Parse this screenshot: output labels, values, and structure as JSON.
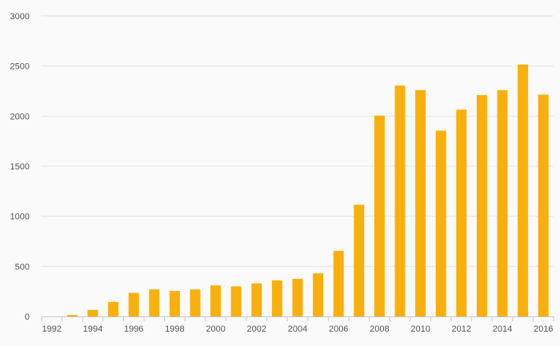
{
  "chart_data": {
    "type": "bar",
    "categories": [
      "1992",
      "1993",
      "1994",
      "1995",
      "1996",
      "1997",
      "1998",
      "1999",
      "2000",
      "2001",
      "2002",
      "2003",
      "2004",
      "2005",
      "2006",
      "2007",
      "2008",
      "2009",
      "2010",
      "2011",
      "2012",
      "2013",
      "2014",
      "2015",
      "2016"
    ],
    "x_tick_labels": [
      "1992",
      "1994",
      "1996",
      "1998",
      "2000",
      "2002",
      "2004",
      "2006",
      "2008",
      "2010",
      "2012",
      "2014",
      "2016"
    ],
    "series": [
      {
        "values": [
          0,
          15,
          65,
          145,
          235,
          270,
          255,
          270,
          310,
          300,
          330,
          360,
          375,
          430,
          655,
          1115,
          2005,
          2305,
          2260,
          1855,
          2065,
          2210,
          2260,
          2515,
          2215
        ]
      }
    ],
    "y_ticks": [
      0,
      500,
      1000,
      1500,
      2000,
      2500,
      3000
    ],
    "ylim": [
      0,
      3000
    ],
    "grid": true,
    "title": "",
    "xlabel": "",
    "ylabel": "",
    "colors": {
      "bar": "#f9b00c",
      "grid": "#e6e6e6",
      "axis": "#c8c8c8",
      "background": "#fafafa"
    }
  }
}
